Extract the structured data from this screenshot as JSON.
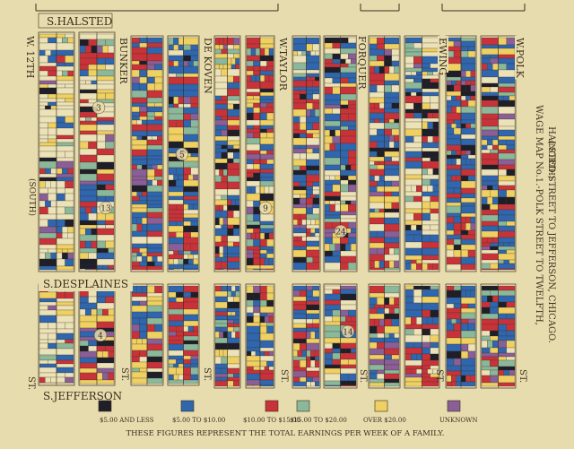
{
  "map": {
    "side_labels": {
      "north": "(NORTH)",
      "south": "(SOUTH)"
    },
    "title_lines": [
      "WAGE MAP No.1.-POLK STREET TO TWELFTH,",
      "HALSTED STREET TO JEFFERSON, CHICAGO."
    ],
    "streets": {
      "s_halsted": "S.HALSTED",
      "s_desplaines": "S.DESPLAINES",
      "s_jefferson": "S.JEFFERSON",
      "w_12th": "W. 12TH",
      "bunker": "BUNKER",
      "de_koven": "DE KOVEN",
      "w_taylor": "W.TAYLOR",
      "forquer": "FORQUER",
      "ewing": "EWING",
      "w_polk": "W.POLK"
    },
    "street_suffix": "ST.",
    "block_numbers": [
      "3",
      "13",
      "5",
      "9",
      "24",
      "14",
      "4"
    ],
    "legend": {
      "items": [
        {
          "label": "$5.00 AND LESS",
          "color": "#1f1f2a"
        },
        {
          "label": "$5.00 TO $10.00",
          "color": "#2f66ad"
        },
        {
          "label": "$10.00 TO $15.00",
          "color": "#c8333a"
        },
        {
          "label": "$15.00 TO $20.00",
          "color": "#8bb89a"
        },
        {
          "label": "OVER $20.00",
          "color": "#efd063"
        },
        {
          "label": "UNKNOWN",
          "color": "#8a5e96"
        }
      ],
      "footer": "THESE FIGURES REPRESENT THE TOTAL EARNINGS PER WEEK OF A FAMILY."
    },
    "colors": {
      "paper": "#e7dcae",
      "ink": "#3a2e1c",
      "empty_lot": "#ece2b8"
    }
  }
}
